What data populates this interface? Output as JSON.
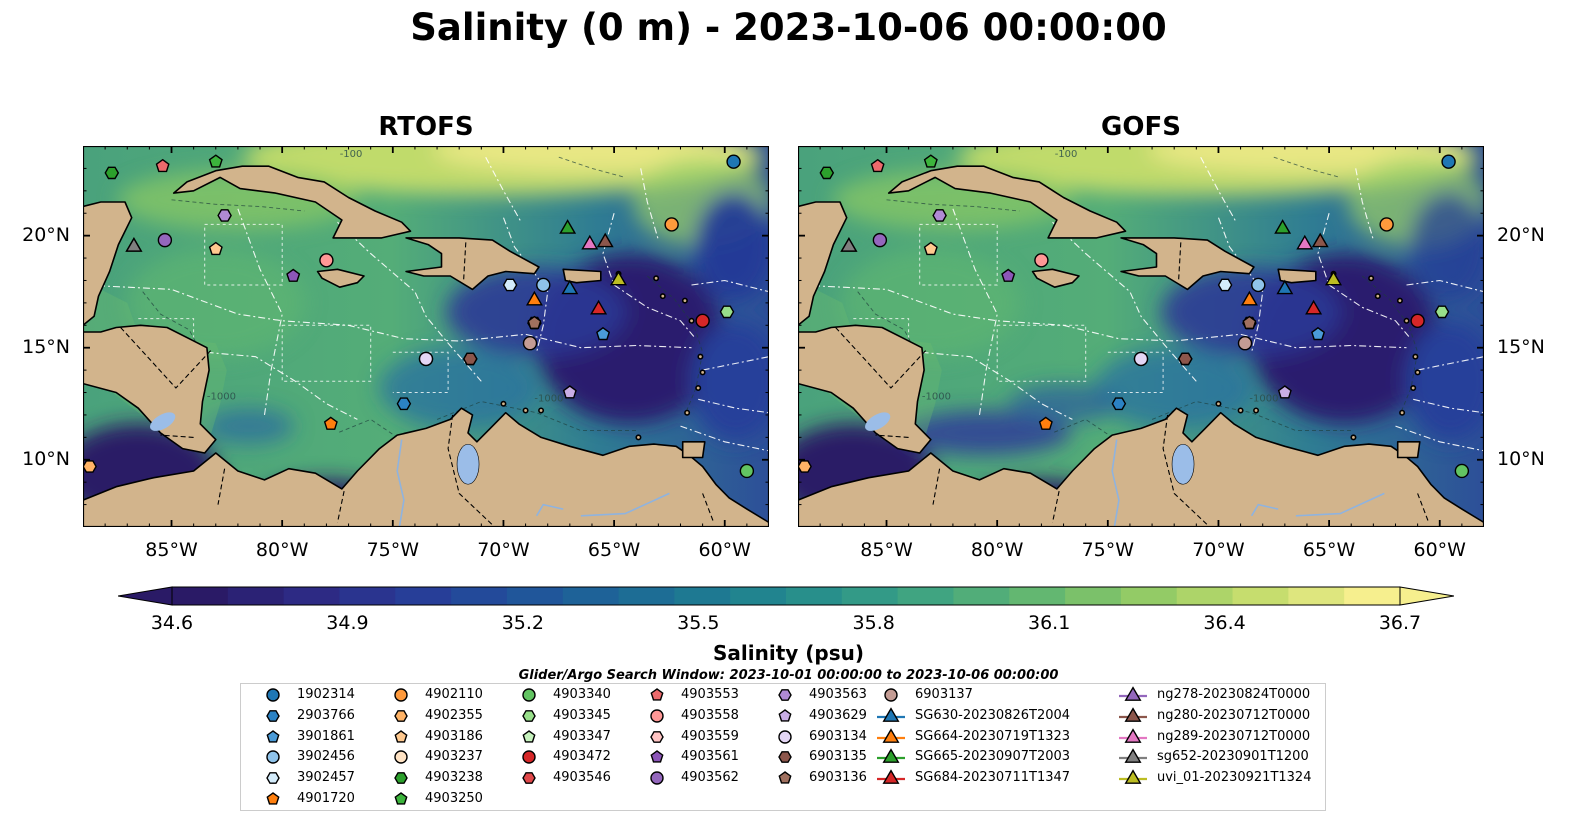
{
  "title": "Salinity (0 m) - 2023-10-06 00:00:00",
  "panels": [
    {
      "name": "RTOFS",
      "side": "left"
    },
    {
      "name": "GOFS",
      "side": "right"
    }
  ],
  "map": {
    "lon_range": [
      -89,
      -58
    ],
    "lat_range": [
      7,
      24
    ],
    "lon_ticks": [
      "85°W",
      "80°W",
      "75°W",
      "70°W",
      "65°W",
      "60°W"
    ],
    "lat_ticks": [
      "20°N",
      "15°N",
      "10°N"
    ],
    "contour_labels": [
      "-100",
      "-1000"
    ]
  },
  "colorbar": {
    "label": "Salinity (psu)",
    "min": 34.6,
    "max": 36.7,
    "ticks": [
      "34.6",
      "34.9",
      "35.2",
      "35.5",
      "35.8",
      "36.1",
      "36.4",
      "36.7"
    ],
    "colors": [
      "#2a1a66",
      "#2d2b86",
      "#26409a",
      "#1f5a9a",
      "#1c7294",
      "#238a8d",
      "#3aa084",
      "#5cb473",
      "#8ec965",
      "#c4dc6c",
      "#f6ef8e"
    ],
    "extend": "both"
  },
  "search_window": "Glider/Argo Search Window: 2023-10-01 00:00:00 to 2023-10-06 00:00:00",
  "legend": {
    "columns": [
      [
        {
          "label": "1902314",
          "marker": "circle",
          "color": "#1f77b4"
        },
        {
          "label": "2903766",
          "marker": "hexagon",
          "color": "#2b82c4"
        },
        {
          "label": "3901861",
          "marker": "pentagon",
          "color": "#4a9bd8"
        },
        {
          "label": "3902456",
          "marker": "circle",
          "color": "#8fc3ea"
        },
        {
          "label": "3902457",
          "marker": "hexagon",
          "color": "#d4ecfb"
        },
        {
          "label": "4901720",
          "marker": "pentagon",
          "color": "#ff7f0e"
        }
      ],
      [
        {
          "label": "4902110",
          "marker": "circle",
          "color": "#ff9a3c"
        },
        {
          "label": "4902355",
          "marker": "hexagon",
          "color": "#ffb366"
        },
        {
          "label": "4903186",
          "marker": "pentagon",
          "color": "#ffc98f"
        },
        {
          "label": "4903237",
          "marker": "circle",
          "color": "#ffe3c4"
        },
        {
          "label": "4903238",
          "marker": "hexagon",
          "color": "#2ca02c"
        },
        {
          "label": "4903250",
          "marker": "pentagon",
          "color": "#3cb43c"
        }
      ],
      [
        {
          "label": "4903340",
          "marker": "circle",
          "color": "#62c462"
        },
        {
          "label": "4903345",
          "marker": "hexagon",
          "color": "#98df8a"
        },
        {
          "label": "4903347",
          "marker": "pentagon",
          "color": "#c6f2bd"
        },
        {
          "label": "4903472",
          "marker": "circle",
          "color": "#d62728"
        },
        {
          "label": "4903546",
          "marker": "hexagon",
          "color": "#e0484a"
        }
      ],
      [
        {
          "label": "4903553",
          "marker": "pentagon",
          "color": "#ec6a6c"
        },
        {
          "label": "4903558",
          "marker": "circle",
          "color": "#ff9896"
        },
        {
          "label": "4903559",
          "marker": "hexagon",
          "color": "#ffc4c3"
        },
        {
          "label": "4903561",
          "marker": "pentagon",
          "color": "#8c56b8"
        },
        {
          "label": "4903562",
          "marker": "circle",
          "color": "#9467bd"
        }
      ],
      [
        {
          "label": "4903563",
          "marker": "hexagon",
          "color": "#b08ad4"
        },
        {
          "label": "4903629",
          "marker": "pentagon",
          "color": "#c9aee6"
        },
        {
          "label": "6903134",
          "marker": "circle",
          "color": "#e4d6f5"
        },
        {
          "label": "6903135",
          "marker": "hexagon",
          "color": "#8c564b"
        },
        {
          "label": "6903136",
          "marker": "pentagon",
          "color": "#a0705f"
        }
      ],
      [
        {
          "label": "6903137",
          "marker": "circle",
          "color": "#c49c94"
        },
        {
          "label": "SG630-20230826T2004",
          "marker": "triangle",
          "color": "#1f77b4"
        },
        {
          "label": "SG664-20230719T1323",
          "marker": "triangle",
          "color": "#ff7f0e"
        },
        {
          "label": "SG665-20230907T2003",
          "marker": "triangle",
          "color": "#2ca02c"
        },
        {
          "label": "SG684-20230711T1347",
          "marker": "triangle",
          "color": "#d62728"
        }
      ],
      [
        {
          "label": "ng278-20230824T0000",
          "marker": "triangle",
          "color": "#9467bd"
        },
        {
          "label": "ng280-20230712T0000",
          "marker": "triangle",
          "color": "#8c564b"
        },
        {
          "label": "ng289-20230712T0000",
          "marker": "triangle",
          "color": "#e377c2"
        },
        {
          "label": "sg652-20230901T1200",
          "marker": "triangle",
          "color": "#7f7f7f"
        },
        {
          "label": "uvi_01-20230921T1324",
          "marker": "triangle",
          "color": "#bcbd22"
        }
      ]
    ]
  },
  "observations": [
    {
      "id": "1902314",
      "lon": -59.6,
      "lat": 23.3
    },
    {
      "id": "2903766",
      "lon": -74.5,
      "lat": 12.5
    },
    {
      "id": "3901861",
      "lon": -65.5,
      "lat": 15.6
    },
    {
      "id": "3902456",
      "lon": -68.2,
      "lat": 17.8
    },
    {
      "id": "3902457",
      "lon": -69.7,
      "lat": 17.8
    },
    {
      "id": "4901720",
      "lon": -77.8,
      "lat": 11.6
    },
    {
      "id": "4902110",
      "lon": -62.4,
      "lat": 20.5
    },
    {
      "id": "4902355",
      "lon": -88.7,
      "lat": 9.7
    },
    {
      "id": "4903186",
      "lon": -83.0,
      "lat": 19.4
    },
    {
      "id": "4903237",
      "lon": -73.5,
      "lat": 14.5
    },
    {
      "id": "4903238",
      "lon": -87.7,
      "lat": 22.8
    },
    {
      "id": "4903250",
      "lon": -83.0,
      "lat": 23.3
    },
    {
      "id": "4903340",
      "lon": -59.0,
      "lat": 9.5
    },
    {
      "id": "4903345",
      "lon": -59.9,
      "lat": 16.6
    },
    {
      "id": "4903472",
      "lon": -61.0,
      "lat": 16.2
    },
    {
      "id": "4903546",
      "lon": -71.5,
      "lat": 14.5
    },
    {
      "id": "4903553",
      "lon": -85.4,
      "lat": 23.1
    },
    {
      "id": "4903558",
      "lon": -78.0,
      "lat": 18.9
    },
    {
      "id": "4903559",
      "lon": -68.6,
      "lat": 16.1
    },
    {
      "id": "4903561",
      "lon": -79.5,
      "lat": 18.2
    },
    {
      "id": "4903562",
      "lon": -85.3,
      "lat": 19.8
    },
    {
      "id": "4903563",
      "lon": -82.6,
      "lat": 20.9
    },
    {
      "id": "4903629",
      "lon": -67.0,
      "lat": 13.0
    },
    {
      "id": "6903134",
      "lon": -73.5,
      "lat": 14.5
    },
    {
      "id": "6903135",
      "lon": -71.5,
      "lat": 14.5
    },
    {
      "id": "6903136",
      "lon": -68.6,
      "lat": 16.1
    },
    {
      "id": "6903137",
      "lon": -68.8,
      "lat": 15.2
    },
    {
      "id": "SG630-20230826T2004",
      "lon": -67.0,
      "lat": 17.6
    },
    {
      "id": "SG664-20230719T1323",
      "lon": -68.6,
      "lat": 17.1
    },
    {
      "id": "SG665-20230907T2003",
      "lon": -67.1,
      "lat": 20.3
    },
    {
      "id": "SG684-20230711T1347",
      "lon": -65.7,
      "lat": 16.7
    },
    {
      "id": "ng278-20230824T0000",
      "lon": -86.7,
      "lat": 19.5
    },
    {
      "id": "ng280-20230712T0000",
      "lon": -65.4,
      "lat": 19.7
    },
    {
      "id": "ng289-20230712T0000",
      "lon": -66.1,
      "lat": 19.6
    },
    {
      "id": "sg652-20230901T1200",
      "lon": -86.7,
      "lat": 19.5
    },
    {
      "id": "uvi_01-20230921T1324",
      "lon": -64.8,
      "lat": 18.0
    }
  ]
}
